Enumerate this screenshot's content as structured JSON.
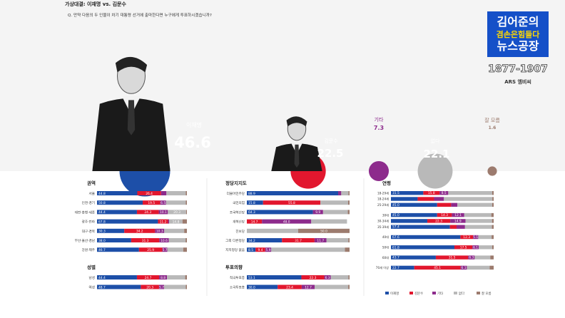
{
  "header": {
    "title": "가상대결: 이재명 vs. 김문수",
    "question": "Q. 만약 다음의 두 인물이 차기 대통령 선거에 출마한다면 누구에게 투표하시겠습니까?"
  },
  "logo": {
    "line1": "김어준의",
    "line2": "겸손은힘들다",
    "line3": "뉴스공장",
    "phone": "1877-1907",
    "ars": "ARS 엠비씨"
  },
  "colors": {
    "lee": "#1d4fa8",
    "kim": "#e2172e",
    "other": "#8d2b8c",
    "none": "#b9b9b9",
    "dk": "#9c7b6e"
  },
  "chart_data": [
    {
      "type": "bar",
      "title": "가상대결: 이재명 vs. 김문수",
      "categories": [
        "이재명",
        "김문수",
        "기타",
        "없다",
        "잘 모름"
      ],
      "values": [
        46.6,
        22.5,
        7.3,
        22.1,
        1.6
      ]
    },
    {
      "type": "bar",
      "stacked": true,
      "title": "권역",
      "categories": [
        "서울",
        "인천·경기",
        "대전·충청·세종",
        "광주·전라",
        "대구·경북",
        "부산·울산·경남",
        "강원·제주"
      ],
      "series": [
        {
          "name": "이재명",
          "values": [
            44.8,
            50.8,
            44.4,
            67.8,
            30.3,
            38.0,
            46.7
          ]
        },
        {
          "name": "김문수",
          "values": [
            26.4,
            19.5,
            24.3,
            11.2,
            34.2,
            31.3,
            25.9
          ]
        },
        {
          "name": "기타",
          "values": [
            6.0,
            6.5,
            10.1,
            1.3,
            10.3,
            10.6,
            5.7
          ]
        },
        {
          "name": "없다",
          "values": [
            21.5,
            21.9,
            20.3,
            14.8,
            22.2,
            18.6,
            17.6
          ]
        },
        {
          "name": "잘 모름",
          "values": [
            1.3,
            1.3,
            0.9,
            4.9,
            3.0,
            1.5,
            4.1
          ]
        }
      ],
      "labels": [
        [
          "44.8",
          "26.4",
          "",
          "",
          ""
        ],
        [
          "50.8",
          "19.5",
          "6.5",
          "",
          ""
        ],
        [
          "44.4",
          "24.3",
          "10.1",
          "20.3",
          ""
        ],
        [
          "67.8",
          "11.2",
          "",
          "14.8",
          ""
        ],
        [
          "30.3",
          "34.2",
          "10.3",
          "",
          ""
        ],
        [
          "38.0",
          "31.3",
          "10.6",
          "",
          ""
        ],
        [
          "46.7",
          "25.9",
          "5.7",
          "",
          ""
        ]
      ]
    },
    {
      "type": "bar",
      "stacked": true,
      "title": "성별",
      "categories": [
        "남성",
        "여성"
      ],
      "series": [
        {
          "name": "이재명",
          "values": [
            44.4,
            48.7
          ]
        },
        {
          "name": "김문수",
          "values": [
            24.7,
            20.3
          ]
        },
        {
          "name": "기타",
          "values": [
            8.8,
            5.7
          ]
        },
        {
          "name": "없다",
          "values": [
            20.2,
            24.0
          ]
        },
        {
          "name": "잘 모름",
          "values": [
            1.9,
            1.3
          ]
        }
      ],
      "labels": [
        [
          "44.4",
          "24.7",
          "8.8",
          "",
          ""
        ],
        [
          "48.7",
          "20.3",
          "5.7",
          "",
          ""
        ]
      ]
    },
    {
      "type": "bar",
      "stacked": true,
      "title": "정당지지도",
      "categories": [
        "더불어민주당",
        "국민의힘",
        "조국혁신당",
        "개혁신당",
        "진보당",
        "그외 다른정당",
        "지지정당 없음"
      ],
      "series": [
        {
          "name": "이재명",
          "values": [
            88.9,
            15.8,
            64.3,
            0,
            0,
            34.2,
            8.5
          ]
        },
        {
          "name": "김문수",
          "values": [
            0,
            55.8,
            0,
            14.7,
            0,
            31.7,
            9.4
          ]
        },
        {
          "name": "기타",
          "values": [
            3.0,
            0,
            9.9,
            48.0,
            0,
            11.7,
            5.9
          ]
        },
        {
          "name": "없다",
          "values": [
            7.0,
            27.0,
            24.1,
            34.8,
            50.0,
            21.2,
            71.7
          ]
        },
        {
          "name": "잘 모름",
          "values": [
            1.1,
            1.4,
            1.7,
            0,
            50.0,
            1.2,
            4.5
          ]
        }
      ],
      "labels": [
        [
          "88.9",
          "",
          "",
          "",
          ""
        ],
        [
          "15.8",
          "55.8",
          "",
          "",
          ""
        ],
        [
          "64.3",
          "",
          "9.9",
          "",
          ""
        ],
        [
          "",
          "14.7",
          "48.0",
          "",
          ""
        ],
        [
          "",
          "",
          "",
          "",
          "50.0"
        ],
        [
          "34.2",
          "31.7",
          "11.7",
          "",
          ""
        ],
        [
          "8.5",
          "9.4",
          "5.9",
          "",
          ""
        ]
      ]
    },
    {
      "type": "bar",
      "stacked": true,
      "title": "투표의향",
      "categories": [
        "적극투표층",
        "소극투표층"
      ],
      "series": [
        {
          "name": "이재명",
          "values": [
            53.1,
            30.0
          ]
        },
        {
          "name": "김문수",
          "values": [
            22.3,
            23.4
          ]
        },
        {
          "name": "기타",
          "values": [
            6.3,
            12.7
          ]
        },
        {
          "name": "없다",
          "values": [
            17.2,
            32.6
          ]
        },
        {
          "name": "잘 모름",
          "values": [
            1.1,
            1.3
          ]
        }
      ],
      "labels": [
        [
          "53.1",
          "22.3",
          "6.3",
          "",
          ""
        ],
        [
          "30.0",
          "23.4",
          "12.7",
          "",
          ""
        ]
      ]
    },
    {
      "type": "bar",
      "stacked": true,
      "title": "연령",
      "categories": [
        "18-29세",
        "18-24세",
        "25-29세",
        "30대",
        "30-34세",
        "35-39세",
        "40대",
        "50대",
        "60대",
        "70세 이상"
      ],
      "series": [
        {
          "name": "이재명",
          "values": [
            31.5,
            26.0,
            45.0,
            45.0,
            35.4,
            57.4,
            67.6,
            61.8,
            43.7,
            22.7
          ]
        },
        {
          "name": "김문수",
          "values": [
            15.8,
            16.0,
            13.6,
            14.3,
            22.3,
            6.5,
            12.3,
            17.5,
            31.5,
            45.1
          ]
        },
        {
          "name": "기타",
          "values": [
            8.5,
            9.6,
            6.1,
            12.1,
            14.9,
            8.2,
            5.1,
            6.1,
            6.3,
            6.1
          ]
        },
        {
          "name": "없다",
          "values": [
            42.8,
            47.1,
            33.9,
            26.3,
            25.8,
            26.2,
            13.0,
            13.1,
            15.2,
            22.2
          ]
        },
        {
          "name": "잘 모름",
          "values": [
            1.4,
            1.3,
            1.4,
            2.3,
            1.6,
            1.7,
            2.0,
            1.5,
            3.3,
            3.9
          ]
        }
      ],
      "labels": [
        [
          "31.5",
          "15.8",
          "8.5",
          "",
          ""
        ],
        [
          "",
          "",
          "",
          "",
          ""
        ],
        [
          "45.0",
          "",
          "",
          "",
          ""
        ],
        [
          "45.0",
          "14.3",
          "12.1",
          "",
          ""
        ],
        [
          "",
          "22.3",
          "14.9",
          "",
          ""
        ],
        [
          "57.4",
          "",
          "",
          "",
          ""
        ],
        [
          "67.6",
          "12.3",
          "5.1",
          "",
          ""
        ],
        [
          "61.8",
          "17.5",
          "6.1",
          "",
          ""
        ],
        [
          "43.7",
          "31.5",
          "6.3",
          "",
          ""
        ],
        [
          "22.7",
          "45.1",
          "6.1",
          "",
          ""
        ]
      ]
    }
  ],
  "legend": [
    "이재명",
    "김문수",
    "기타",
    "없다",
    "잘 모름"
  ]
}
